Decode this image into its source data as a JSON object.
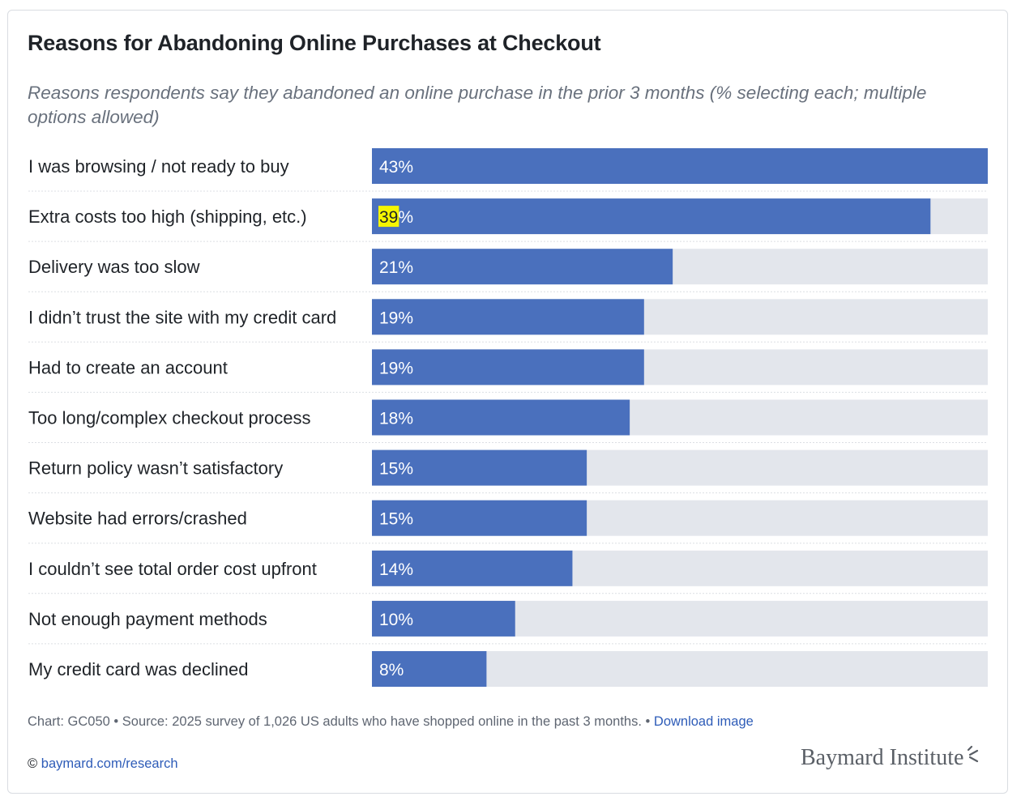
{
  "title": "Reasons for Abandoning Online Purchases at Checkout",
  "subtitle": "Reasons respondents say they abandoned an online purchase in the prior 3 months (% selecting each; multiple options allowed)",
  "chart_data": {
    "type": "bar",
    "orientation": "horizontal",
    "title": "Reasons for Abandoning Online Purchases at Checkout",
    "xlabel": "",
    "ylabel": "",
    "xlim": [
      0,
      43
    ],
    "unit": "%",
    "highlight": {
      "index": 1,
      "text": "39"
    },
    "categories": [
      "I was browsing / not ready to buy",
      "Extra costs too high (shipping, etc.)",
      "Delivery was too slow",
      "I didn’t trust the site with my credit card",
      "Had to create an account",
      "Too long/complex checkout process",
      "Return policy wasn’t satisfactory",
      "Website had errors/crashed",
      "I couldn’t see total order cost upfront",
      "Not enough payment methods",
      "My credit card was declined"
    ],
    "values": [
      43,
      39,
      21,
      19,
      19,
      18,
      15,
      15,
      14,
      10,
      8
    ]
  },
  "footer": {
    "chart_id": "Chart: GC050",
    "separator": "•",
    "source": "Source: 2025 survey of 1,026 US adults who have shopped online in the past 3 months.",
    "download_label": "Download image",
    "copyright_symbol": "©",
    "research_link": "baymard.com/research",
    "logo_text": "Baymard Institute"
  },
  "colors": {
    "bar": "#4a70bd",
    "track": "#e3e6ec",
    "highlight": "#f5f500",
    "divider": "#dcdfe4"
  }
}
